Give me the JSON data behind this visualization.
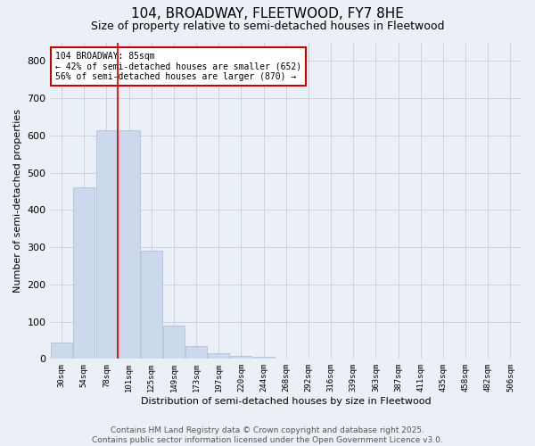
{
  "title": "104, BROADWAY, FLEETWOOD, FY7 8HE",
  "subtitle": "Size of property relative to semi-detached houses in Fleetwood",
  "xlabel": "Distribution of semi-detached houses by size in Fleetwood",
  "ylabel": "Number of semi-detached properties",
  "categories": [
    "30sqm",
    "54sqm",
    "78sqm",
    "101sqm",
    "125sqm",
    "149sqm",
    "173sqm",
    "197sqm",
    "220sqm",
    "244sqm",
    "268sqm",
    "292sqm",
    "316sqm",
    "339sqm",
    "363sqm",
    "387sqm",
    "411sqm",
    "435sqm",
    "458sqm",
    "482sqm",
    "506sqm"
  ],
  "values": [
    45,
    460,
    615,
    615,
    290,
    90,
    35,
    15,
    8,
    5,
    0,
    0,
    0,
    0,
    0,
    0,
    0,
    0,
    0,
    0,
    0
  ],
  "bar_color": "#ccd9ec",
  "bar_edge_color": "#aabbd4",
  "grid_color": "#c8d4e0",
  "background_color": "#eaf0f6",
  "vline_x": 2.5,
  "vline_color": "#cc0000",
  "annotation_text": "104 BROADWAY: 85sqm\n← 42% of semi-detached houses are smaller (652)\n56% of semi-detached houses are larger (870) →",
  "annotation_box_color": "#ffffff",
  "annotation_box_edge": "#cc0000",
  "ylim": [
    0,
    850
  ],
  "yticks": [
    0,
    100,
    200,
    300,
    400,
    500,
    600,
    700,
    800
  ],
  "footer_line1": "Contains HM Land Registry data © Crown copyright and database right 2025.",
  "footer_line2": "Contains public sector information licensed under the Open Government Licence v3.0.",
  "title_fontsize": 11,
  "subtitle_fontsize": 9,
  "footer_fontsize": 6.5
}
